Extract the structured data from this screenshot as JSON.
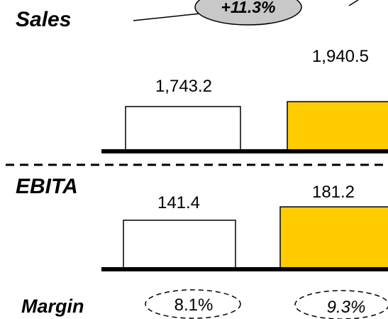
{
  "chart_data": [
    {
      "type": "bar",
      "title": "Sales",
      "categories": [
        "",
        ""
      ],
      "values": [
        1743.2,
        1940.5
      ],
      "value_labels": [
        "1,743.2",
        "1,940.5"
      ],
      "growth_label": "+11.3%",
      "colors": [
        "#ffffff",
        "#ffcc00"
      ]
    },
    {
      "type": "bar",
      "title": "EBITA",
      "categories": [
        "",
        ""
      ],
      "values": [
        141.4,
        181.2
      ],
      "value_labels": [
        "141.4",
        "181.2"
      ],
      "colors": [
        "#ffffff",
        "#ffcc00"
      ]
    }
  ],
  "margin": {
    "label": "Margin",
    "values": [
      "8.1%",
      "9.3%"
    ]
  },
  "colors": {
    "accent": "#ffcc00",
    "bubble": "#c8c8c8",
    "bar_outline": "#000000"
  }
}
